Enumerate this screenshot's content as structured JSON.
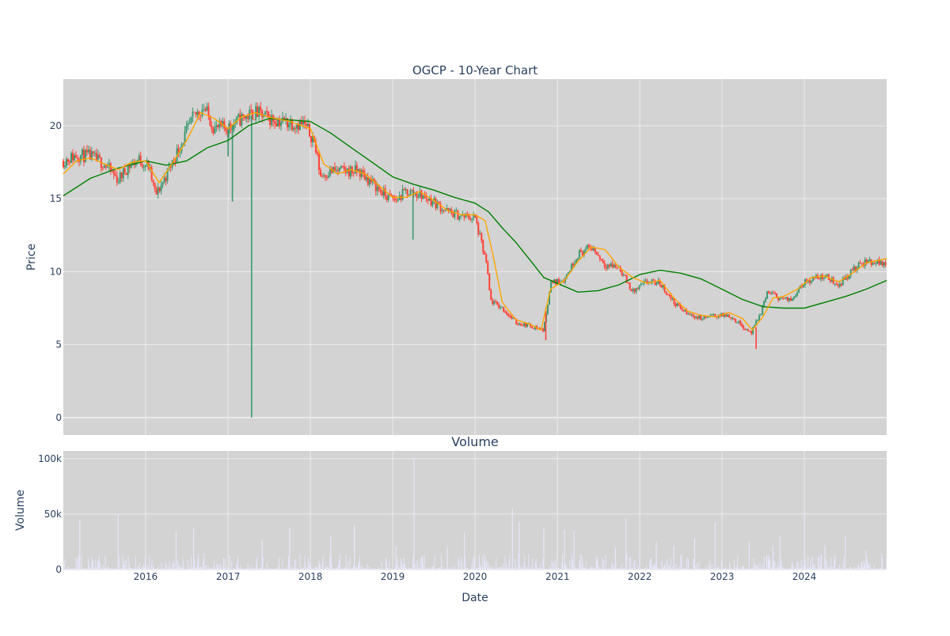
{
  "page": {
    "main_title": "OGCP - 10-Year Chart",
    "volume_title": "Volume"
  },
  "colors": {
    "plot_bg": "#d3d3d3",
    "grid": "#ebebeb",
    "up": "#3d9970",
    "down": "#ff4136",
    "ma_short": "#ffa500",
    "ma_long": "#008000",
    "volume_bar": "#e6e6fa",
    "text": "#2a3f5f"
  },
  "chart_data": [
    {
      "type": "candlestick",
      "title": "OGCP - 10-Year Chart",
      "xlabel": "",
      "ylabel": "Price",
      "xlim": [
        "2015-01-01",
        "2024-12-31"
      ],
      "ylim": [
        -1.2,
        23.2
      ],
      "y_ticks": [
        0,
        5,
        10,
        15,
        20
      ],
      "grid": true,
      "legend": "none",
      "price_series": [
        [
          "2015-01-01",
          17.6
        ],
        [
          "2015-03-01",
          18.0
        ],
        [
          "2015-05-01",
          17.9
        ],
        [
          "2015-07-01",
          17.4
        ],
        [
          "2015-09-01",
          16.3
        ],
        [
          "2015-10-15",
          17.2
        ],
        [
          "2015-12-01",
          17.7
        ],
        [
          "2016-01-15",
          17.2
        ],
        [
          "2016-02-15",
          15.2
        ],
        [
          "2016-04-01",
          16.6
        ],
        [
          "2016-06-01",
          18.6
        ],
        [
          "2016-08-01",
          20.6
        ],
        [
          "2016-09-15",
          21.3
        ],
        [
          "2016-11-01",
          19.8
        ],
        [
          "2017-01-01",
          19.9
        ],
        [
          "2017-03-01",
          20.5
        ],
        [
          "2017-05-01",
          20.9
        ],
        [
          "2017-07-01",
          20.5
        ],
        [
          "2017-09-01",
          20.3
        ],
        [
          "2017-12-01",
          20.1
        ],
        [
          "2018-01-15",
          19.1
        ],
        [
          "2018-02-15",
          16.6
        ],
        [
          "2018-04-01",
          16.9
        ],
        [
          "2018-06-01",
          16.9
        ],
        [
          "2018-08-01",
          16.9
        ],
        [
          "2018-10-01",
          16.1
        ],
        [
          "2018-12-01",
          15.2
        ],
        [
          "2019-01-15",
          14.9
        ],
        [
          "2019-03-01",
          15.5
        ],
        [
          "2019-05-01",
          15.3
        ],
        [
          "2019-07-01",
          14.8
        ],
        [
          "2019-09-01",
          14.1
        ],
        [
          "2019-11-01",
          13.8
        ],
        [
          "2020-01-01",
          13.7
        ],
        [
          "2020-02-20",
          10.6
        ],
        [
          "2020-03-10",
          8.0
        ],
        [
          "2020-05-01",
          7.5
        ],
        [
          "2020-07-01",
          6.5
        ],
        [
          "2020-09-01",
          6.3
        ],
        [
          "2020-11-01",
          6.0
        ],
        [
          "2020-12-01",
          9.2
        ],
        [
          "2021-02-01",
          9.5
        ],
        [
          "2021-04-01",
          11.2
        ],
        [
          "2021-06-01",
          11.7
        ],
        [
          "2021-08-01",
          10.5
        ],
        [
          "2021-10-01",
          10.3
        ],
        [
          "2021-12-01",
          8.6
        ],
        [
          "2022-02-01",
          9.3
        ],
        [
          "2022-04-01",
          9.2
        ],
        [
          "2022-06-01",
          7.9
        ],
        [
          "2022-08-01",
          7.1
        ],
        [
          "2022-10-01",
          6.8
        ],
        [
          "2022-12-01",
          7.0
        ],
        [
          "2023-02-01",
          7.0
        ],
        [
          "2023-04-01",
          6.3
        ],
        [
          "2023-05-10",
          5.8
        ],
        [
          "2023-06-20",
          7.1
        ],
        [
          "2023-07-20",
          8.6
        ],
        [
          "2023-09-15",
          8.2
        ],
        [
          "2023-11-01",
          8.0
        ],
        [
          "2023-12-15",
          9.1
        ],
        [
          "2024-02-01",
          9.5
        ],
        [
          "2024-04-01",
          9.7
        ],
        [
          "2024-06-01",
          9.1
        ],
        [
          "2024-08-01",
          10.1
        ],
        [
          "2024-10-01",
          10.7
        ],
        [
          "2024-12-31",
          10.6
        ]
      ],
      "spikes": [
        {
          "date": "2017-01-01",
          "high": 19.9,
          "low": 17.9
        },
        {
          "date": "2017-01-20",
          "high": 20.1,
          "low": 14.8
        },
        {
          "date": "2017-04-15",
          "high": 20.7,
          "low": 0.0
        },
        {
          "date": "2019-04-01",
          "high": 15.6,
          "low": 12.2
        },
        {
          "date": "2020-11-10",
          "high": 7.5,
          "low": 5.3
        },
        {
          "date": "2023-06-01",
          "high": 6.2,
          "low": 4.7
        }
      ],
      "ma_short": [
        [
          "2015-01-01",
          16.7
        ],
        [
          "2015-03-01",
          17.6
        ],
        [
          "2015-05-01",
          17.8
        ],
        [
          "2015-07-01",
          17.4
        ],
        [
          "2015-09-01",
          17.0
        ],
        [
          "2015-11-01",
          17.5
        ],
        [
          "2016-01-01",
          17.6
        ],
        [
          "2016-03-01",
          16.1
        ],
        [
          "2016-05-01",
          17.5
        ],
        [
          "2016-07-01",
          19.0
        ],
        [
          "2016-09-01",
          20.9
        ],
        [
          "2016-11-01",
          20.5
        ],
        [
          "2017-01-01",
          19.8
        ],
        [
          "2017-03-01",
          20.6
        ],
        [
          "2017-05-01",
          20.9
        ],
        [
          "2017-07-01",
          20.6
        ],
        [
          "2017-10-01",
          20.3
        ],
        [
          "2018-01-01",
          19.8
        ],
        [
          "2018-03-01",
          17.4
        ],
        [
          "2018-05-01",
          16.7
        ],
        [
          "2018-07-01",
          17.0
        ],
        [
          "2018-09-01",
          16.7
        ],
        [
          "2018-11-01",
          15.9
        ],
        [
          "2019-01-01",
          15.1
        ],
        [
          "2019-03-01",
          15.1
        ],
        [
          "2019-05-01",
          15.5
        ],
        [
          "2019-07-01",
          14.9
        ],
        [
          "2019-09-01",
          14.2
        ],
        [
          "2019-11-01",
          13.9
        ],
        [
          "2020-01-01",
          13.9
        ],
        [
          "2020-02-15",
          13.5
        ],
        [
          "2020-03-20",
          11.2
        ],
        [
          "2020-05-01",
          7.9
        ],
        [
          "2020-07-01",
          6.7
        ],
        [
          "2020-09-01",
          6.4
        ],
        [
          "2020-10-20",
          6.0
        ],
        [
          "2020-12-01",
          8.8
        ],
        [
          "2021-02-01",
          9.4
        ],
        [
          "2021-04-01",
          10.7
        ],
        [
          "2021-06-01",
          11.7
        ],
        [
          "2021-08-01",
          11.5
        ],
        [
          "2021-10-01",
          10.3
        ],
        [
          "2021-12-01",
          9.6
        ],
        [
          "2022-02-01",
          9.2
        ],
        [
          "2022-04-01",
          9.4
        ],
        [
          "2022-06-01",
          8.2
        ],
        [
          "2022-08-01",
          7.3
        ],
        [
          "2022-10-01",
          7.0
        ],
        [
          "2022-12-01",
          6.9
        ],
        [
          "2023-02-01",
          7.2
        ],
        [
          "2023-04-01",
          6.8
        ],
        [
          "2023-05-15",
          6.0
        ],
        [
          "2023-07-01",
          6.9
        ],
        [
          "2023-08-15",
          8.2
        ],
        [
          "2023-10-01",
          8.3
        ],
        [
          "2023-12-01",
          8.8
        ],
        [
          "2024-02-01",
          9.6
        ],
        [
          "2024-04-01",
          9.7
        ],
        [
          "2024-06-01",
          9.3
        ],
        [
          "2024-08-01",
          9.9
        ],
        [
          "2024-10-01",
          10.6
        ],
        [
          "2024-12-31",
          10.9
        ]
      ],
      "ma_long": [
        [
          "2015-01-01",
          15.2
        ],
        [
          "2015-05-01",
          16.4
        ],
        [
          "2015-09-01",
          17.1
        ],
        [
          "2016-01-01",
          17.6
        ],
        [
          "2016-04-01",
          17.3
        ],
        [
          "2016-07-01",
          17.6
        ],
        [
          "2016-10-01",
          18.5
        ],
        [
          "2017-01-01",
          19.0
        ],
        [
          "2017-04-01",
          20.0
        ],
        [
          "2017-07-01",
          20.5
        ],
        [
          "2017-10-01",
          20.4
        ],
        [
          "2018-01-01",
          20.3
        ],
        [
          "2018-04-01",
          19.5
        ],
        [
          "2018-07-01",
          18.5
        ],
        [
          "2018-10-01",
          17.5
        ],
        [
          "2019-01-01",
          16.5
        ],
        [
          "2019-04-01",
          16.0
        ],
        [
          "2019-07-01",
          15.6
        ],
        [
          "2019-10-01",
          15.1
        ],
        [
          "2020-01-01",
          14.7
        ],
        [
          "2020-03-01",
          14.1
        ],
        [
          "2020-05-01",
          13.0
        ],
        [
          "2020-07-01",
          12.0
        ],
        [
          "2020-09-01",
          10.8
        ],
        [
          "2020-11-01",
          9.6
        ],
        [
          "2021-01-01",
          9.2
        ],
        [
          "2021-04-01",
          8.6
        ],
        [
          "2021-07-01",
          8.7
        ],
        [
          "2021-10-01",
          9.1
        ],
        [
          "2022-01-01",
          9.8
        ],
        [
          "2022-04-01",
          10.1
        ],
        [
          "2022-07-01",
          9.9
        ],
        [
          "2022-10-01",
          9.5
        ],
        [
          "2023-01-01",
          8.8
        ],
        [
          "2023-04-01",
          8.1
        ],
        [
          "2023-07-01",
          7.6
        ],
        [
          "2023-10-01",
          7.5
        ],
        [
          "2024-01-01",
          7.5
        ],
        [
          "2024-04-01",
          7.9
        ],
        [
          "2024-07-01",
          8.3
        ],
        [
          "2024-10-01",
          8.8
        ],
        [
          "2024-12-31",
          9.4
        ]
      ]
    },
    {
      "type": "bar",
      "title": "Volume",
      "xlabel": "Date",
      "ylabel": "Volume",
      "xlim": [
        "2015-01-01",
        "2024-12-31"
      ],
      "ylim": [
        0,
        107000
      ],
      "y_ticks": [
        0,
        50000,
        100000
      ],
      "y_tick_labels": [
        "0",
        "50k",
        "100k"
      ],
      "x_ticks": [
        "2016-01-01",
        "2017-01-01",
        "2018-01-01",
        "2019-01-01",
        "2020-01-01",
        "2021-01-01",
        "2022-01-01",
        "2023-01-01",
        "2024-01-01"
      ],
      "x_tick_labels": [
        "2016",
        "2017",
        "2018",
        "2019",
        "2020",
        "2021",
        "2022",
        "2023",
        "2024"
      ],
      "grid": true,
      "peaks": [
        [
          "2015-03-15",
          45000
        ],
        [
          "2015-09-01",
          50000
        ],
        [
          "2016-05-15",
          35000
        ],
        [
          "2016-08-01",
          37000
        ],
        [
          "2017-06-01",
          27000
        ],
        [
          "2017-10-01",
          38000
        ],
        [
          "2018-04-01",
          31000
        ],
        [
          "2018-07-15",
          40000
        ],
        [
          "2019-01-15",
          21000
        ],
        [
          "2019-04-05",
          101000
        ],
        [
          "2019-09-01",
          20000
        ],
        [
          "2019-11-15",
          34000
        ],
        [
          "2020-06-15",
          55000
        ],
        [
          "2020-07-15",
          43000
        ],
        [
          "2020-11-01",
          37000
        ],
        [
          "2021-02-01",
          36000
        ],
        [
          "2021-03-15",
          35000
        ],
        [
          "2021-09-15",
          20000
        ],
        [
          "2021-11-01",
          46000
        ],
        [
          "2022-01-01",
          20000
        ],
        [
          "2022-03-15",
          25000
        ],
        [
          "2022-06-01",
          22000
        ],
        [
          "2022-09-01",
          28000
        ],
        [
          "2022-12-01",
          43000
        ],
        [
          "2023-05-01",
          25000
        ],
        [
          "2023-08-15",
          22000
        ],
        [
          "2023-09-15",
          30000
        ],
        [
          "2024-01-01",
          51000
        ],
        [
          "2024-04-01",
          22000
        ],
        [
          "2024-07-01",
          31000
        ],
        [
          "2024-10-01",
          17000
        ]
      ]
    }
  ]
}
